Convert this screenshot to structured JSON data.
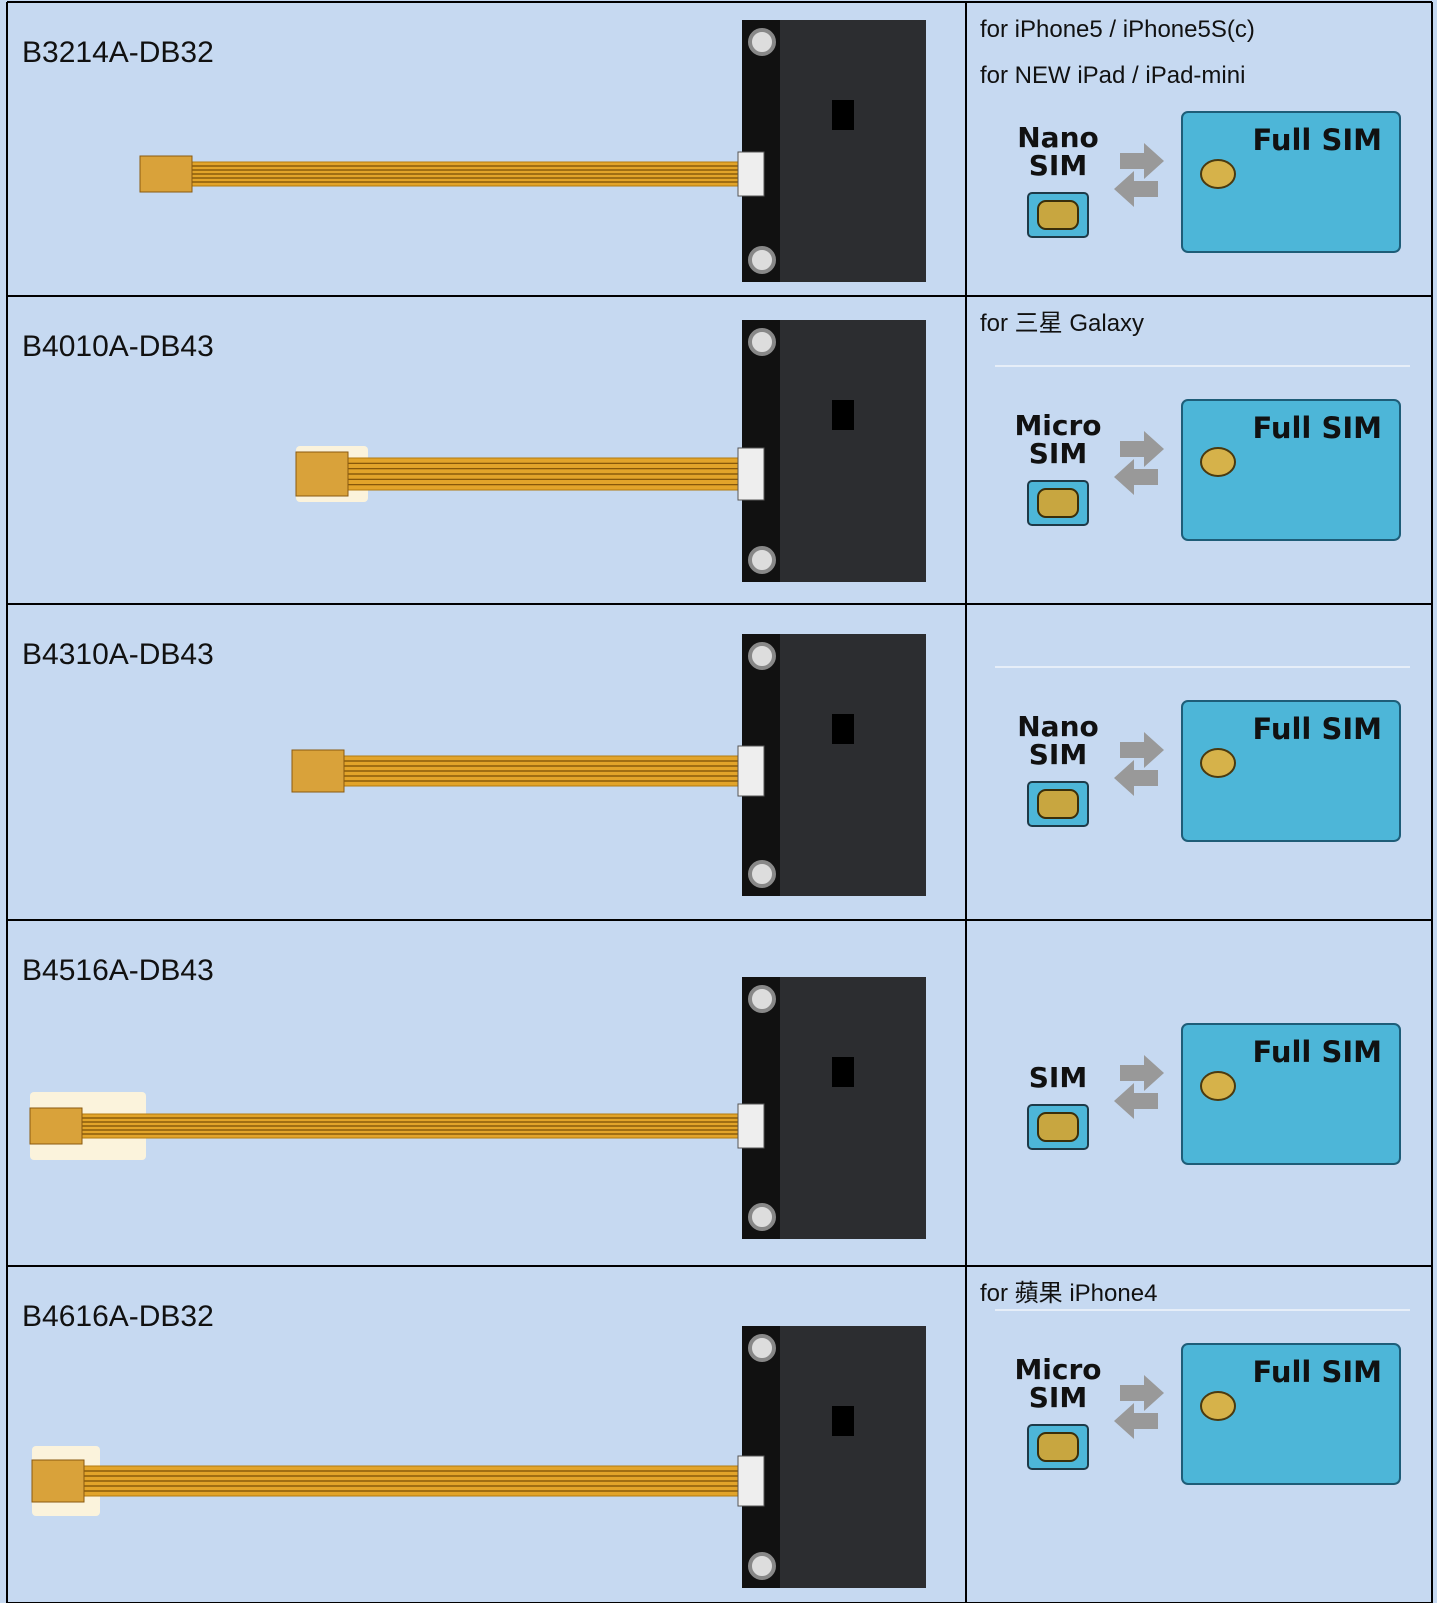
{
  "rows": [
    {
      "model": "B3214A-DB32",
      "notes": [
        "for iPhone5 / iPhone5S(c)",
        "for NEW iPad / iPad-mini"
      ],
      "small_sim": [
        "Nano",
        "SIM"
      ],
      "full_sim": "Full SIM"
    },
    {
      "model": "B4010A-DB43",
      "notes": [
        "for  三星 Galaxy"
      ],
      "small_sim": [
        "Micro",
        "SIM"
      ],
      "full_sim": "Full SIM"
    },
    {
      "model": "B4310A-DB43",
      "notes": [],
      "small_sim": [
        "Nano",
        "SIM"
      ],
      "full_sim": "Full SIM"
    },
    {
      "model": "B4516A-DB43",
      "notes": [],
      "small_sim": [
        "SIM"
      ],
      "full_sim": "Full SIM"
    },
    {
      "model": "B4616A-DB32",
      "notes": [
        "for 蘋果 iPhone4"
      ],
      "small_sim": [
        "Micro",
        "SIM"
      ],
      "full_sim": "Full SIM"
    }
  ]
}
